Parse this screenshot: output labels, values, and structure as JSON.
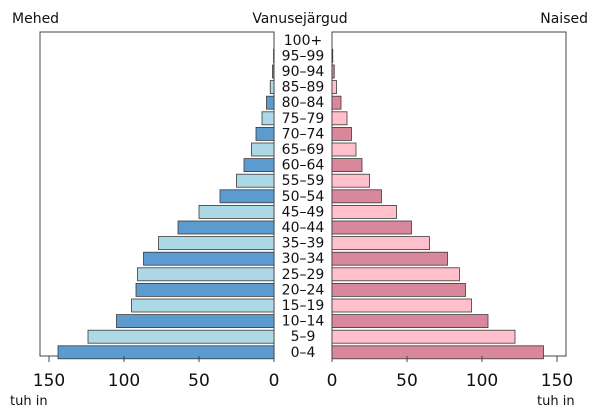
{
  "chart_data": {
    "type": "bar",
    "title": "Vanusejärgud",
    "left_label": "Mehed",
    "right_label": "Naised",
    "unit_label": "tuh in",
    "categories": [
      "100+",
      "95–99",
      "90–94",
      "85–89",
      "80–84",
      "75–79",
      "70–74",
      "65–69",
      "60–64",
      "55–59",
      "50–54",
      "45–49",
      "40–44",
      "35–39",
      "30–34",
      "25–29",
      "20–24",
      "15–19",
      "10–14",
      "5–9",
      "0–4"
    ],
    "series": [
      {
        "name": "Mehed",
        "values": [
          0,
          0.3,
          1.0,
          2.5,
          5,
          8,
          12,
          15,
          20,
          25,
          36,
          50,
          64,
          77,
          87,
          91,
          92,
          95,
          105,
          124,
          144
        ]
      },
      {
        "name": "Naised",
        "values": [
          0,
          0.5,
          1.5,
          3,
          6,
          10,
          13,
          16,
          20,
          25,
          33,
          43,
          53,
          65,
          77,
          85,
          89,
          93,
          104,
          122,
          141
        ]
      }
    ],
    "xlim": [
      0,
      150
    ],
    "xticks": [
      "150",
      "100",
      "50",
      "0",
      "0",
      "50",
      "100",
      "150"
    ],
    "colors": {
      "men_dark": "#5b9bd0",
      "men_light": "#add8e6",
      "women_dark": "#d9879b",
      "women_light": "#ffc0cb",
      "frame": "#444444"
    }
  }
}
